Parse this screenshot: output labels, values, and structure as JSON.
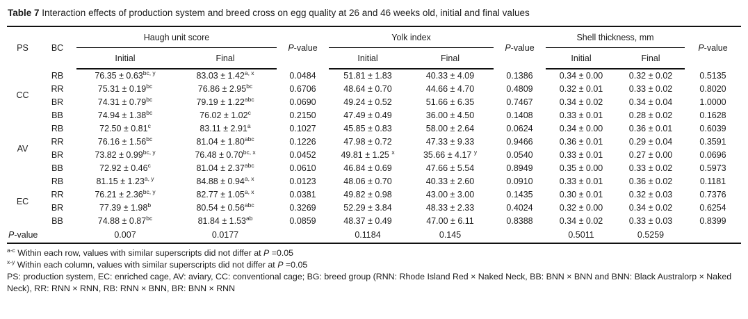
{
  "title": {
    "bold": "Table 7",
    "text": " Interaction effects of production system and breed cross on egg quality at 26 and 46 weeks old, initial and final values"
  },
  "header": {
    "ps": "PS",
    "bc": "BC",
    "pvalue": {
      "it": "P",
      "rest": "-value"
    },
    "groups": [
      {
        "label": "Haugh unit score",
        "sub": [
          "Initial",
          "Final"
        ]
      },
      {
        "label": "Yolk index",
        "sub": [
          "Initial",
          "Final"
        ]
      },
      {
        "label": "Shell thickness, mm",
        "sub": [
          "Initial",
          "Final"
        ]
      }
    ]
  },
  "groups": [
    {
      "label": "CC",
      "rows": [
        {
          "bc": "RB",
          "cells": [
            [
              "76.35 ± 0.63",
              "bc, y"
            ],
            [
              "83.03 ± 1.42",
              "a, x"
            ],
            "0.0484",
            "51.81 ± 1.83",
            "40.33 ± 4.09",
            "0.1386",
            "0.34 ± 0.00",
            "0.32 ± 0.02",
            "0.5135"
          ]
        },
        {
          "bc": "RR",
          "cells": [
            [
              "75.31 ± 0.19",
              "bc"
            ],
            [
              "76.86 ± 2.95",
              "bc"
            ],
            "0.6706",
            "48.64 ± 0.70",
            "44.66 ± 4.70",
            "0.4809",
            "0.32 ± 0.01",
            "0.33 ± 0.02",
            "0.8020"
          ]
        },
        {
          "bc": "BR",
          "cells": [
            [
              "74.31 ± 0.79",
              "bc"
            ],
            [
              "79.19 ± 1.22",
              "abc"
            ],
            "0.0690",
            "49.24 ± 0.52",
            "51.66 ± 6.35",
            "0.7467",
            "0.34 ± 0.02",
            "0.34 ± 0.04",
            "1.0000"
          ]
        },
        {
          "bc": "BB",
          "cells": [
            [
              "74.94 ± 1.38",
              "bc"
            ],
            [
              "76.02 ± 1.02",
              "c"
            ],
            "0.2150",
            "47.49 ± 0.49",
            "36.00 ± 4.50",
            "0.1408",
            "0.33 ± 0.01",
            "0.28 ± 0.02",
            "0.1628"
          ]
        }
      ]
    },
    {
      "label": "AV",
      "rows": [
        {
          "bc": "RB",
          "cells": [
            [
              "72.50 ± 0.81",
              "c"
            ],
            [
              "83.11 ± 2.91",
              "a"
            ],
            "0.1027",
            "45.85 ± 0.83",
            "58.00 ± 2.64",
            "0.0624",
            "0.34 ± 0.00",
            "0.36 ± 0.01",
            "0.6039"
          ]
        },
        {
          "bc": "RR",
          "cells": [
            [
              "76.16 ± 1.56",
              "bc"
            ],
            [
              "81.04 ± 1.80",
              "abc"
            ],
            "0.1226",
            "47.98 ± 0.72",
            "47.33 ± 9.33",
            "0.9466",
            "0.36 ± 0.01",
            "0.29 ± 0.04",
            "0.3591"
          ]
        },
        {
          "bc": "BR",
          "cells": [
            [
              "73.82 ± 0.99",
              "bc, y"
            ],
            [
              "76.48 ± 0.70",
              "bc, x"
            ],
            "0.0452",
            [
              "49.81 ± 1.25 ",
              "x"
            ],
            [
              "35.66 ± 4.17 ",
              "y"
            ],
            "0.0540",
            "0.33 ± 0.01",
            "0.27 ± 0.00",
            "0.0696"
          ]
        },
        {
          "bc": "BB",
          "cells": [
            [
              "72.92 ± 0.46",
              "c"
            ],
            [
              "81.04 ± 2.37",
              "abc"
            ],
            "0.0610",
            "46.84 ± 0.69",
            "47.66 ± 5.54",
            "0.8949",
            "0.35 ± 0.00",
            "0.33 ± 0.02",
            "0.5973"
          ]
        }
      ]
    },
    {
      "label": "EC",
      "rows": [
        {
          "bc": "RB",
          "cells": [
            [
              "81.15 ± 1.23",
              "a, y"
            ],
            [
              "84.88 ± 0.94",
              "a, x"
            ],
            "0.0123",
            "48.06 ± 0.70",
            "40.33 ± 2.60",
            "0.0910",
            "0.33 ± 0.01",
            "0.36 ± 0.02",
            "0.1181"
          ]
        },
        {
          "bc": "RR",
          "cells": [
            [
              "76.21 ± 2.36",
              "bc, y"
            ],
            [
              "82.77 ± 1.05",
              "a, x"
            ],
            "0.0381",
            "49.82 ± 0.98",
            "43.00 ± 3.00",
            "0.1435",
            "0.30 ± 0.01",
            "0.32 ± 0.03",
            "0.7376"
          ]
        },
        {
          "bc": "BR",
          "cells": [
            [
              "77.39 ± 1.98",
              "b"
            ],
            [
              "80.54 ± 0.56",
              "abc"
            ],
            "0.3269",
            "52.29 ± 3.84",
            "48.33 ± 2.33",
            "0.4024",
            "0.32 ± 0.00",
            "0.34 ± 0.02",
            "0.6254"
          ]
        },
        {
          "bc": "BB",
          "cells": [
            [
              "74.88 ± 0.87",
              "bc"
            ],
            [
              "81.84 ± 1.53",
              "ab"
            ],
            "0.0859",
            "48.37 ± 0.49",
            "47.00 ± 6.11",
            "0.8388",
            "0.34 ± 0.02",
            "0.33 ± 0.03",
            "0.8399"
          ]
        }
      ]
    }
  ],
  "footer": {
    "label": {
      "it": "P",
      "rest": "-value"
    },
    "values": [
      "0.007",
      "0.0177",
      "",
      "0.1184",
      "0.145",
      "",
      "0.5011",
      "0.5259",
      ""
    ]
  },
  "footnotes": [
    {
      "sup": "a-c",
      "text": " Within each row, values with similar superscripts did not differ at ",
      "it": "P",
      "tail": " =0.05"
    },
    {
      "sup": "x-y",
      "text": " Within each column, values with similar superscripts did not differ at ",
      "it": "P",
      "tail": " =0.05"
    },
    {
      "sup": "",
      "text": "PS: production system, EC: enriched cage, AV: aviary, CC: conventional cage; BG: breed group (RNN: Rhode Island Red × Naked Neck, BB: BNN × BNN and BNN: Black Australorp × Naked Neck), RR: RNN × RNN, RB: RNN × BNN, BR: BNN × RNN",
      "it": "",
      "tail": ""
    }
  ]
}
